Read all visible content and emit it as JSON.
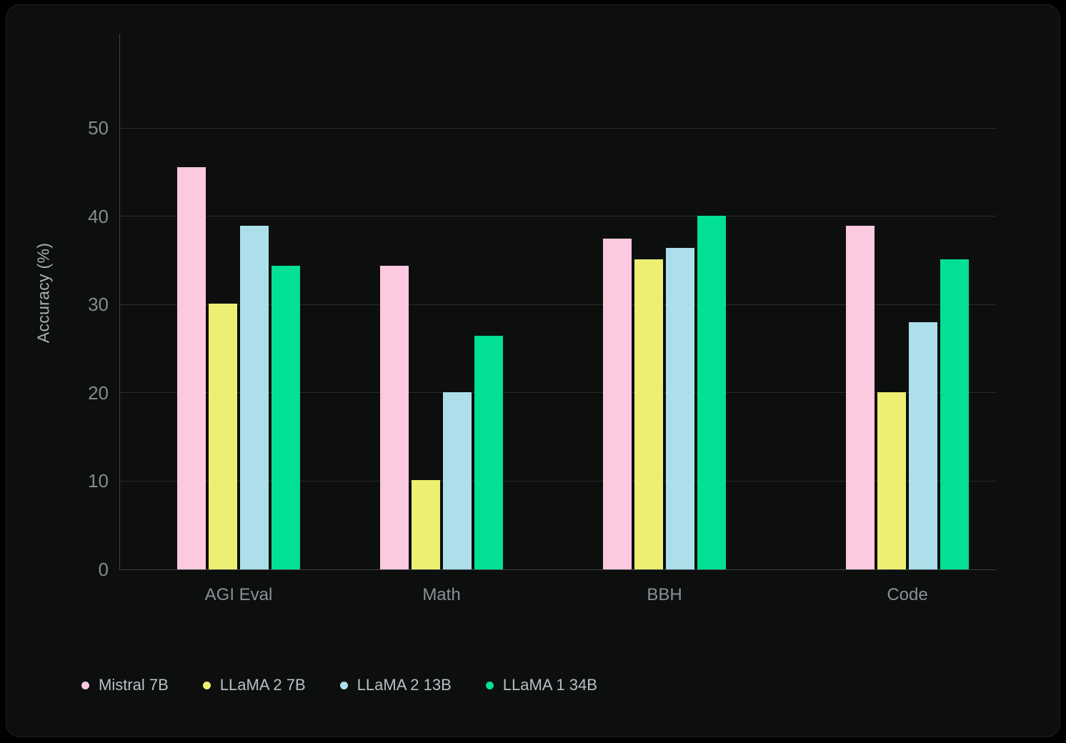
{
  "chart_data": {
    "type": "bar",
    "title": "",
    "xlabel": "",
    "ylabel": "Accuracy (%)",
    "categories": [
      "AGI Eval",
      "Math",
      "BBH",
      "Code"
    ],
    "series": [
      {
        "name": "Mistral 7B",
        "color": "#fdc9e1",
        "values": [
          45.6,
          34.4,
          37.5,
          38.9
        ]
      },
      {
        "name": "LLaMA 2 7B",
        "color": "#edef72",
        "values": [
          30.1,
          10.1,
          35.1,
          20.1
        ]
      },
      {
        "name": "LLaMA 2 13B",
        "color": "#addfeb",
        "values": [
          38.9,
          20.1,
          36.4,
          28.0
        ]
      },
      {
        "name": "LLaMA 1 34B",
        "color": "#02e193",
        "values": [
          34.4,
          26.5,
          40.1,
          35.1
        ]
      }
    ],
    "yticks": [
      0,
      10,
      20,
      30,
      40,
      50
    ],
    "ylim": [
      0,
      60.7
    ],
    "grid": true,
    "legend_position": "bottom-left",
    "theme": {
      "panel_background": "#0d0f0e",
      "page_background": "#000000",
      "axis_color": "#3d4244",
      "grid_color": "#2a2d2c",
      "tick_label_color": "#858b91",
      "legend_label_color": "#b9bfc5"
    }
  }
}
